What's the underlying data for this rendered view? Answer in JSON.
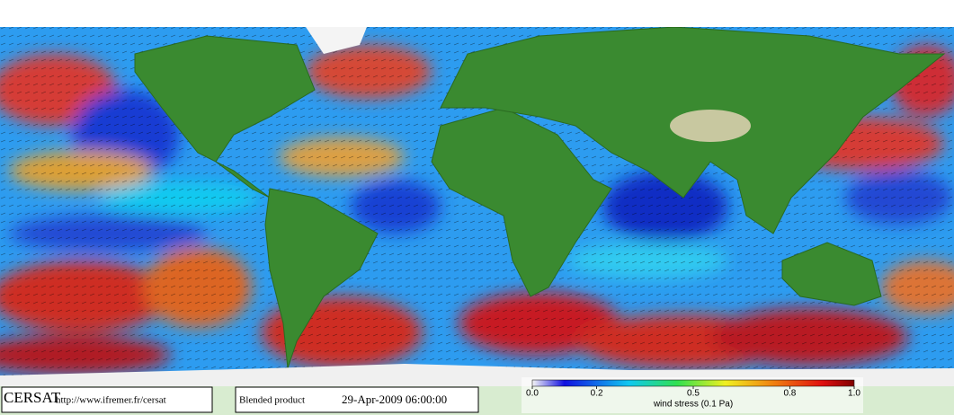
{
  "footer": {
    "logo": "CERSAT",
    "url": "http://www.ifremer.fr/cersat",
    "product": "Blended product",
    "date": "29-Apr-2009 06:00:00"
  },
  "colorbar": {
    "label": "wind stress (0.1 Pa)",
    "range": [
      0,
      1
    ],
    "ticks": [
      {
        "value": 0,
        "label": "0.0"
      },
      0.2,
      0.5,
      0.8,
      {
        "value": 1,
        "label": "1.0"
      }
    ]
  }
}
